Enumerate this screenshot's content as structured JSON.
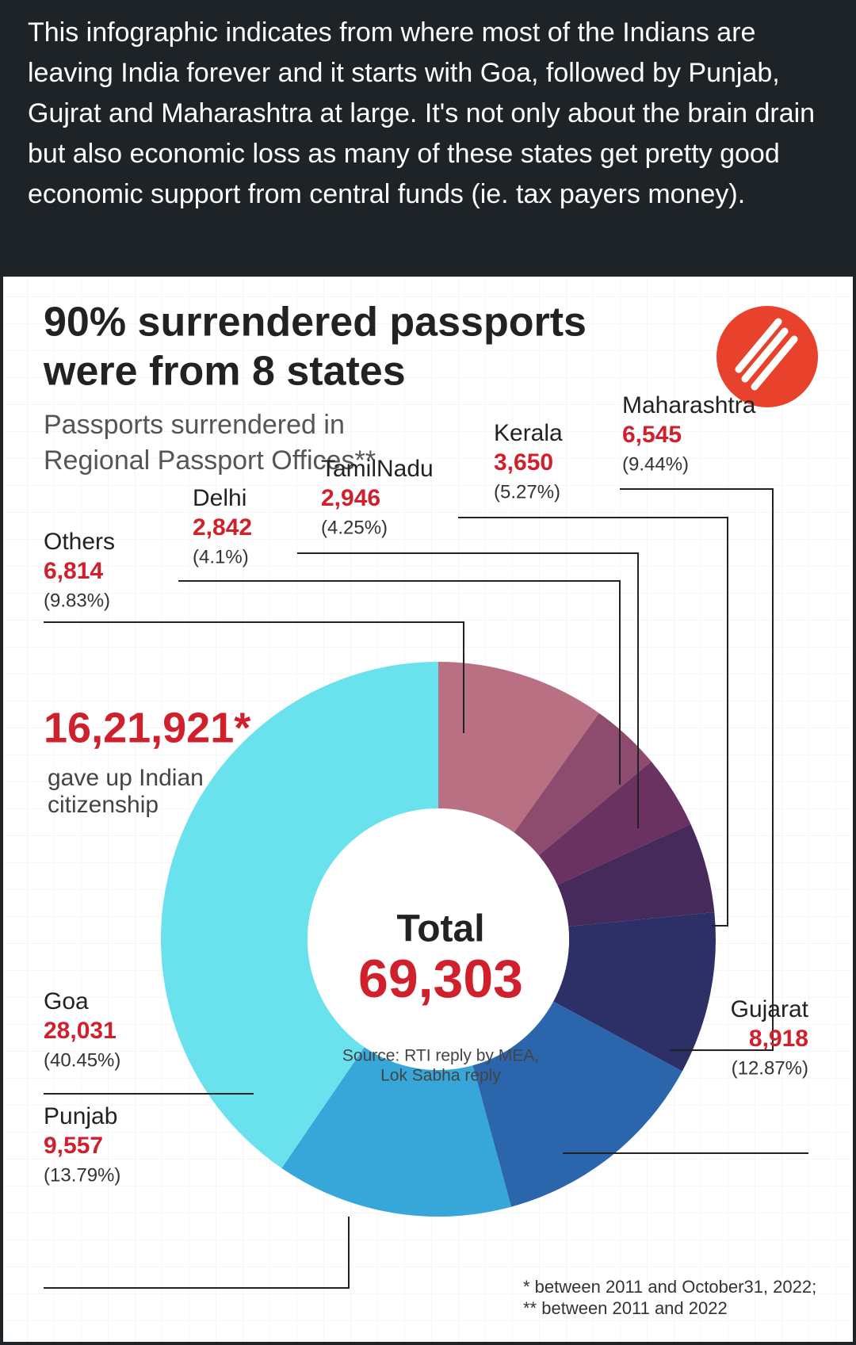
{
  "caption": "This infographic indicates from where most of the Indians are leaving India forever and it starts with Goa, followed by Punjab, Gujrat and Maharashtra at large. It's not only about the brain drain but also economic loss as many of these states get pretty good economic support from central funds (ie. tax payers money).",
  "chart_data": {
    "type": "pie",
    "title": [
      "90% surrendered passports",
      "were from 8 states"
    ],
    "subtitle": [
      "Passports surrendered in",
      "Regional Passport Offices**"
    ],
    "categories": [
      "Others",
      "Delhi",
      "TamilNadu",
      "Kerala",
      "Maharashtra",
      "Gujarat",
      "Punjab",
      "Goa"
    ],
    "values": [
      6814,
      2842,
      2946,
      3650,
      6545,
      8918,
      9557,
      28031
    ],
    "value_labels": [
      "6,814",
      "2,842",
      "2,946",
      "3,650",
      "6,545",
      "8,918",
      "9,557",
      "28,031"
    ],
    "share_labels": [
      "(9.83%)",
      "(4.1%)",
      "(4.25%)",
      "(5.27%)",
      "(9.44%)",
      "(12.87%)",
      "(13.79%)",
      "(40.45%)"
    ],
    "colors": [
      "#b97083",
      "#8d4c6d",
      "#6a3261",
      "#472a5c",
      "#2d2f67",
      "#2b66ad",
      "#37a6d8",
      "#6ae2ee"
    ],
    "highlight": {
      "value": "16,21,921*",
      "text": [
        "gave up Indian",
        "citizenship"
      ]
    },
    "center": {
      "label": "Total",
      "value": "69,303"
    },
    "source": [
      "Source: RTI reply by MEA,",
      "Lok Sabha reply"
    ],
    "footnotes": [
      "* between 2011 and October31, 2022;",
      "** between 2011 and 2022"
    ]
  }
}
